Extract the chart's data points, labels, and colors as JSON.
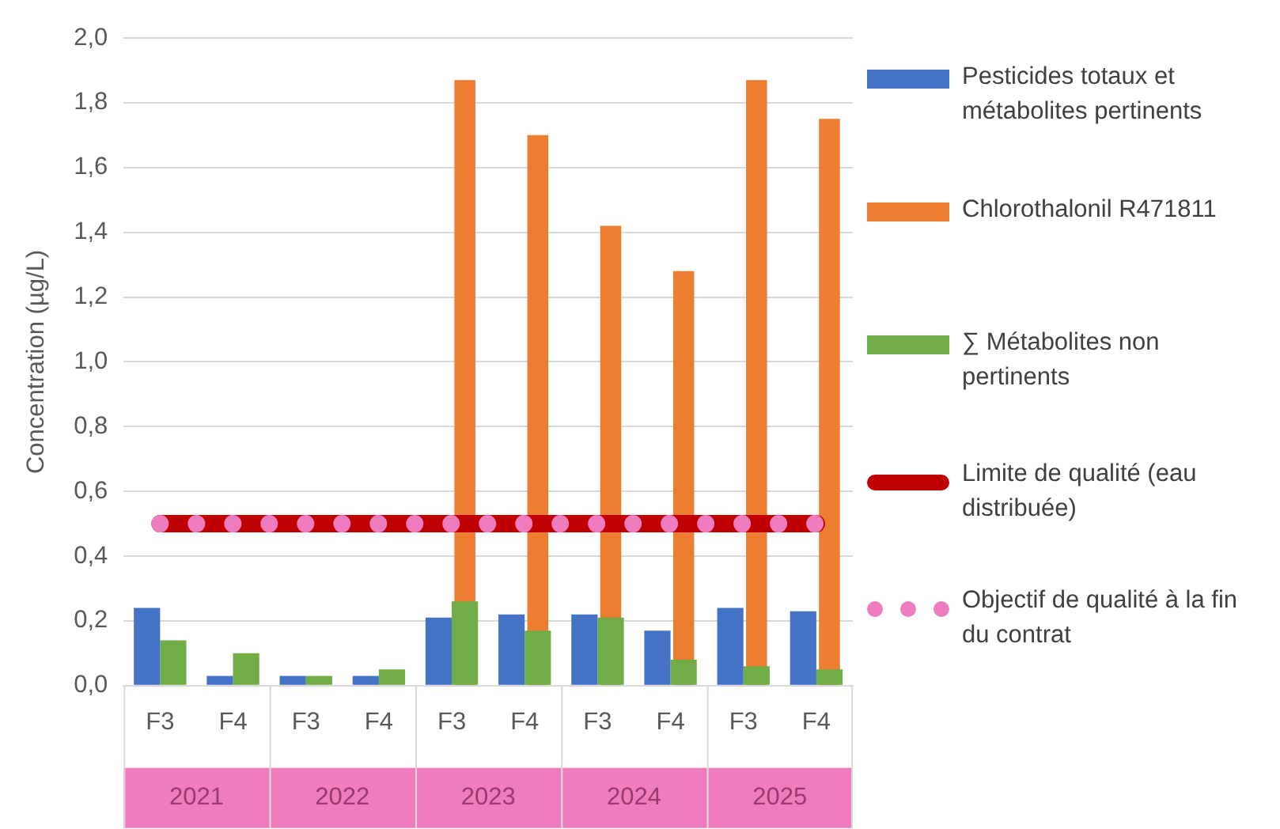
{
  "chart_data": {
    "type": "bar",
    "ylabel": "Concentration (µg/L)",
    "categories": [
      "F3",
      "F4",
      "F3",
      "F4",
      "F3",
      "F4",
      "F3",
      "F4",
      "F3",
      "F4"
    ],
    "annotations": [
      "2021",
      "2022",
      "2023",
      "2024",
      "2025"
    ],
    "series": [
      {
        "name": "Pesticides totaux et métabolites pertinents",
        "color": "#4472c4",
        "values": [
          0.24,
          0.03,
          0.03,
          0.03,
          0.21,
          0.22,
          0.22,
          0.17,
          0.24,
          0.23
        ]
      },
      {
        "name": "Chlorothalonil R471811",
        "color": "#ed7d31",
        "values": [
          null,
          null,
          null,
          null,
          1.87,
          1.7,
          1.42,
          1.28,
          1.87,
          1.75
        ]
      },
      {
        "name": "∑ Métabolites non pertinents",
        "color": "#70ad47",
        "values": [
          0.14,
          0.1,
          0.03,
          0.05,
          0.26,
          0.17,
          0.21,
          0.08,
          0.06,
          0.05
        ]
      },
      {
        "name": "Limite de qualité (eau distribuée)",
        "type": "line",
        "line_style": "solid",
        "color": "#c00000",
        "values": [
          0.5,
          0.5,
          0.5,
          0.5,
          0.5,
          0.5,
          0.5,
          0.5,
          0.5,
          0.5
        ]
      },
      {
        "name": "Objectif de qualité à la fin du contrat",
        "type": "line",
        "line_style": "dotted",
        "color": "#f07cc0",
        "values": [
          0.5,
          0.5,
          0.5,
          0.5,
          0.5,
          0.5,
          0.5,
          0.5,
          0.5,
          0.5
        ]
      }
    ],
    "ylim": [
      0,
      2
    ],
    "yticks": [
      {
        "value": 0,
        "label": "0,0"
      },
      {
        "value": 0.2,
        "label": "0,2"
      },
      {
        "value": 0.4,
        "label": "0,4"
      },
      {
        "value": 0.6,
        "label": "0,6"
      },
      {
        "value": 0.8,
        "label": "0,8"
      },
      {
        "value": 1,
        "label": "1,0"
      },
      {
        "value": 1.2,
        "label": "1,2"
      },
      {
        "value": 1.4,
        "label": "1,4"
      },
      {
        "value": 1.6,
        "label": "1,6"
      },
      {
        "value": 1.8,
        "label": "1,8"
      },
      {
        "value": 2,
        "label": "2,0"
      }
    ],
    "grid": "y",
    "legend": "right"
  }
}
